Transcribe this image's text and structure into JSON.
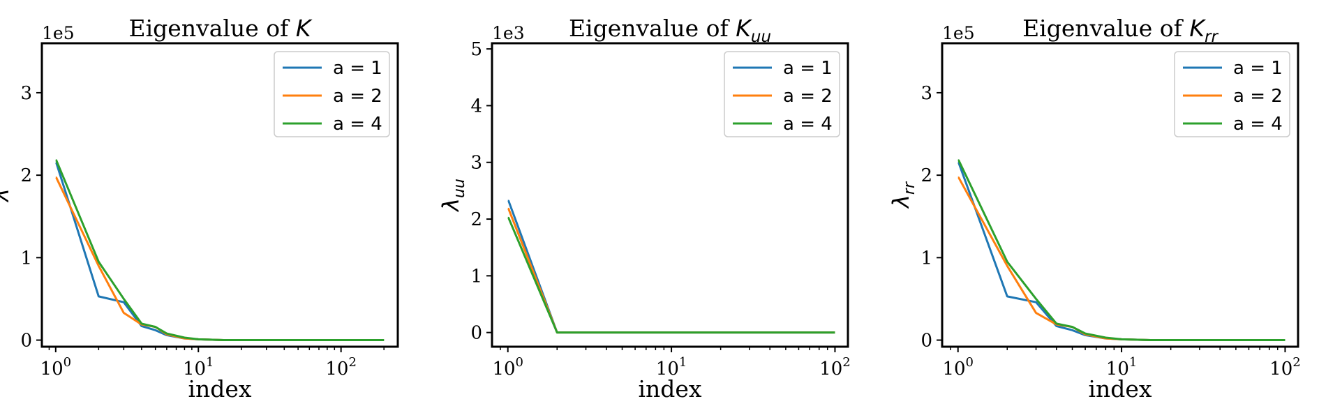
{
  "figure": {
    "series_colors": [
      "#1f77b4",
      "#ff7f0e",
      "#2ca02c"
    ]
  },
  "chart_data": [
    {
      "type": "line",
      "title_prefix": "Eigenvalue of ",
      "title_symbol": "K",
      "title_sub": "",
      "xlabel": "index",
      "ylabel_symbol": "λ",
      "ylabel_sub": "",
      "offset_text": "1e5",
      "x_scale": "log",
      "x_ticks": [
        {
          "value": 1,
          "base": "10",
          "exp": "0"
        },
        {
          "value": 10,
          "base": "10",
          "exp": "1"
        },
        {
          "value": 100,
          "base": "10",
          "exp": "2"
        }
      ],
      "xlim": [
        0.8,
        250
      ],
      "ylim": [
        -0.08,
        3.6
      ],
      "y_ticks": [
        0,
        1,
        2,
        3
      ],
      "y_tick_labels": [
        "0",
        "1",
        "2",
        "3"
      ],
      "legend_position": "top-right",
      "series": [
        {
          "label": "a = 1",
          "x": [
            1,
            1.01,
            2,
            3,
            4,
            5,
            6,
            8,
            10,
            15,
            20,
            200
          ],
          "y": [
            2.15,
            2.15,
            0.53,
            0.46,
            0.17,
            0.12,
            0.06,
            0.02,
            0.01,
            0,
            0,
            0
          ]
        },
        {
          "label": "a = 2",
          "x": [
            1,
            1.01,
            2,
            3,
            4,
            5,
            6,
            8,
            10,
            15,
            20,
            200
          ],
          "y": [
            1.97,
            1.97,
            0.9,
            0.33,
            0.19,
            0.16,
            0.07,
            0.02,
            0.01,
            0,
            0,
            0
          ]
        },
        {
          "label": "a = 4",
          "x": [
            1,
            1.01,
            2,
            3,
            4,
            5,
            6,
            8,
            10,
            15,
            20,
            200
          ],
          "y": [
            2.18,
            2.18,
            0.95,
            0.5,
            0.2,
            0.16,
            0.08,
            0.03,
            0.01,
            0,
            0,
            0
          ]
        }
      ]
    },
    {
      "type": "line",
      "title_prefix": "Eigenvalue of ",
      "title_symbol": "K",
      "title_sub": "uu",
      "xlabel": "index",
      "ylabel_symbol": "λ",
      "ylabel_sub": "uu",
      "offset_text": "1e3",
      "x_scale": "log",
      "x_ticks": [
        {
          "value": 1,
          "base": "10",
          "exp": "0"
        },
        {
          "value": 10,
          "base": "10",
          "exp": "1"
        },
        {
          "value": 100,
          "base": "10",
          "exp": "2"
        }
      ],
      "xlim": [
        0.8,
        120
      ],
      "ylim": [
        -0.25,
        5.1
      ],
      "y_ticks": [
        0,
        1,
        2,
        3,
        4,
        5
      ],
      "y_tick_labels": [
        "0",
        "1",
        "2",
        "3",
        "4",
        "5"
      ],
      "legend_position": "top-right",
      "series": [
        {
          "label": "a = 1",
          "x": [
            1,
            1.01,
            2,
            10,
            100
          ],
          "y": [
            2.32,
            2.32,
            0,
            0,
            0
          ]
        },
        {
          "label": "a = 2",
          "x": [
            1,
            1.01,
            2,
            10,
            100
          ],
          "y": [
            2.18,
            2.18,
            0,
            0,
            0
          ]
        },
        {
          "label": "a = 4",
          "x": [
            1,
            1.01,
            2,
            10,
            100
          ],
          "y": [
            2.02,
            2.02,
            0,
            0,
            0
          ]
        }
      ]
    },
    {
      "type": "line",
      "title_prefix": "Eigenvalue of ",
      "title_symbol": "K",
      "title_sub": "rr",
      "xlabel": "index",
      "ylabel_symbol": "λ",
      "ylabel_sub": "rr",
      "offset_text": "1e5",
      "x_scale": "log",
      "x_ticks": [
        {
          "value": 1,
          "base": "10",
          "exp": "0"
        },
        {
          "value": 10,
          "base": "10",
          "exp": "1"
        },
        {
          "value": 100,
          "base": "10",
          "exp": "2"
        }
      ],
      "xlim": [
        0.8,
        120
      ],
      "ylim": [
        -0.08,
        3.6
      ],
      "y_ticks": [
        0,
        1,
        2,
        3
      ],
      "y_tick_labels": [
        "0",
        "1",
        "2",
        "3"
      ],
      "legend_position": "top-right",
      "series": [
        {
          "label": "a = 1",
          "x": [
            1,
            1.01,
            2,
            3,
            4,
            5,
            6,
            8,
            10,
            15,
            20,
            100
          ],
          "y": [
            2.15,
            2.15,
            0.53,
            0.46,
            0.17,
            0.12,
            0.06,
            0.02,
            0.01,
            0,
            0,
            0
          ]
        },
        {
          "label": "a = 2",
          "x": [
            1,
            1.01,
            2,
            3,
            4,
            5,
            6,
            8,
            10,
            15,
            20,
            100
          ],
          "y": [
            1.97,
            1.97,
            0.9,
            0.33,
            0.19,
            0.16,
            0.07,
            0.02,
            0.01,
            0,
            0,
            0
          ]
        },
        {
          "label": "a = 4",
          "x": [
            1,
            1.01,
            2,
            3,
            4,
            5,
            6,
            8,
            10,
            15,
            20,
            100
          ],
          "y": [
            2.18,
            2.18,
            0.95,
            0.5,
            0.2,
            0.16,
            0.08,
            0.03,
            0.01,
            0,
            0,
            0
          ]
        }
      ]
    }
  ]
}
